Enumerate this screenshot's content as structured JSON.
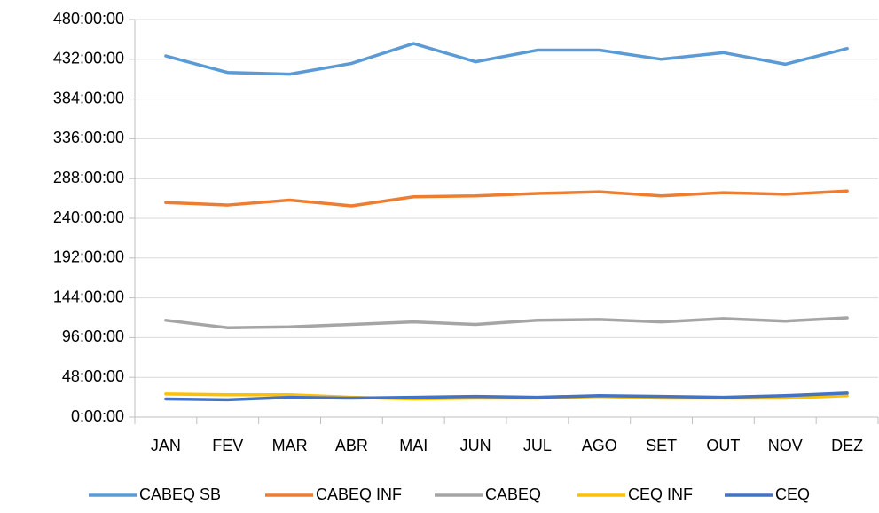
{
  "chart_data": {
    "type": "line",
    "categories": [
      "JAN",
      "FEV",
      "MAR",
      "ABR",
      "MAI",
      "JUN",
      "JUL",
      "AGO",
      "SET",
      "OUT",
      "NOV",
      "DEZ"
    ],
    "series": [
      {
        "name": "CABEQ SB",
        "color": "#5b9bd5",
        "values": [
          436,
          416,
          414,
          427,
          451,
          429,
          443,
          443,
          432,
          440,
          426,
          445
        ]
      },
      {
        "name": "CABEQ INF",
        "color": "#ed7d31",
        "values": [
          259,
          256,
          262,
          255,
          266,
          267,
          270,
          272,
          267,
          271,
          269,
          273
        ]
      },
      {
        "name": "CABEQ",
        "color": "#a5a5a5",
        "values": [
          117,
          108,
          109,
          112,
          115,
          112,
          117,
          118,
          115,
          119,
          116,
          120
        ]
      },
      {
        "name": "CEQ INF",
        "color": "#ffc000",
        "values": [
          28,
          27,
          27,
          24,
          22,
          23,
          23,
          25,
          23,
          23,
          23,
          26
        ]
      },
      {
        "name": "CEQ",
        "color": "#4472c4",
        "values": [
          22,
          21,
          24,
          23,
          24,
          25,
          24,
          26,
          25,
          24,
          26,
          29
        ]
      }
    ],
    "ylim": [
      0,
      480
    ],
    "yticks": [
      {
        "value": 0,
        "label": "0:00:00"
      },
      {
        "value": 48,
        "label": "48:00:00"
      },
      {
        "value": 96,
        "label": "96:00:00"
      },
      {
        "value": 144,
        "label": "144:00:00"
      },
      {
        "value": 192,
        "label": "192:00:00"
      },
      {
        "value": 240,
        "label": "240:00:00"
      },
      {
        "value": 288,
        "label": "288:00:00"
      },
      {
        "value": 336,
        "label": "336:00:00"
      },
      {
        "value": 384,
        "label": "384:00:00"
      },
      {
        "value": 432,
        "label": "432:00:00"
      },
      {
        "value": 480,
        "label": "480:00:00"
      }
    ],
    "grid": true,
    "legend": "bottom"
  }
}
